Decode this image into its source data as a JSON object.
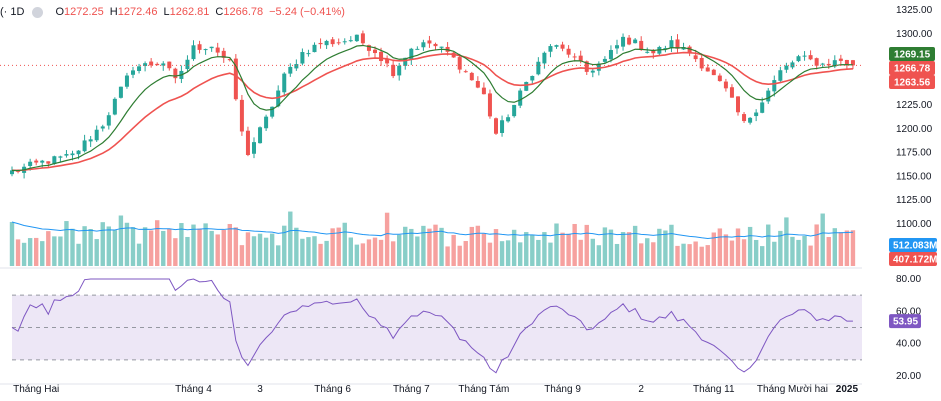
{
  "header": {
    "symbol": "(· 1D",
    "open_key": "O",
    "open": "1272.25",
    "high_key": "H",
    "high": "1272.46",
    "low_key": "L",
    "low": "1262.81",
    "close_key": "C",
    "close": "1266.78",
    "change": "−5.24 (−0.41%)"
  },
  "colors": {
    "up": "#26a69a",
    "down": "#ef5350",
    "ma_fast": "#2e7d32",
    "ma_slow": "#ef5350",
    "volume_ma": "#2196f3",
    "rsi": "#7e57c2",
    "rsi_band": "#ede7f6"
  },
  "price_axis": {
    "ticks": [
      "1325.00",
      "1300.00",
      "1275.00",
      "1250.00",
      "1225.00",
      "1200.00",
      "1175.00",
      "1150.00",
      "1125.00",
      "1100.00"
    ],
    "ylim": [
      1100,
      1325
    ],
    "tags": [
      {
        "label": "1269.15",
        "value": 1269.15,
        "color": "#2e7d32"
      },
      {
        "label": "1266.78",
        "value": 1266.78,
        "color": "#ef5350"
      },
      {
        "label": "1263.56",
        "value": 1263.56,
        "color": "#ef5350"
      }
    ]
  },
  "volume": {
    "tags": [
      {
        "label": "512.083M",
        "color": "#2196f3"
      },
      {
        "label": "407.172M",
        "color": "#ef5350"
      }
    ]
  },
  "rsi": {
    "ticks": [
      "80.00",
      "60.00",
      "40.00",
      "20.00"
    ],
    "ylim": [
      20,
      80
    ],
    "upper": 70,
    "middle": 50,
    "lower": 30,
    "value_label": "53.95",
    "value": 53.95
  },
  "x_axis": {
    "labels": [
      "Tháng Hai",
      "Tháng 4",
      "3",
      "Tháng 6",
      "Tháng 7",
      "Tháng Tám",
      "Tháng 9",
      "2",
      "Tháng 11",
      "Tháng Mười hai",
      "2025"
    ],
    "label_bars": [
      4,
      30,
      41,
      53,
      66,
      78,
      91,
      104,
      116,
      129,
      138
    ]
  },
  "chart_data": {
    "type": "candlestick",
    "title": "",
    "n_bars": 140,
    "close_anchors": [
      [
        0,
        1155
      ],
      [
        5,
        1165
      ],
      [
        10,
        1172
      ],
      [
        15,
        1205
      ],
      [
        20,
        1265
      ],
      [
        25,
        1270
      ],
      [
        27,
        1250
      ],
      [
        30,
        1285
      ],
      [
        33,
        1288
      ],
      [
        36,
        1268
      ],
      [
        38,
        1195
      ],
      [
        39,
        1175
      ],
      [
        42,
        1210
      ],
      [
        45,
        1255
      ],
      [
        48,
        1280
      ],
      [
        51,
        1290
      ],
      [
        54,
        1292
      ],
      [
        57,
        1295
      ],
      [
        60,
        1282
      ],
      [
        63,
        1260
      ],
      [
        66,
        1285
      ],
      [
        69,
        1290
      ],
      [
        72,
        1280
      ],
      [
        75,
        1260
      ],
      [
        78,
        1235
      ],
      [
        80,
        1195
      ],
      [
        83,
        1225
      ],
      [
        86,
        1260
      ],
      [
        89,
        1288
      ],
      [
        92,
        1280
      ],
      [
        95,
        1260
      ],
      [
        98,
        1272
      ],
      [
        101,
        1295
      ],
      [
        103,
        1290
      ],
      [
        106,
        1280
      ],
      [
        109,
        1290
      ],
      [
        112,
        1280
      ],
      [
        115,
        1262
      ],
      [
        118,
        1240
      ],
      [
        121,
        1205
      ],
      [
        124,
        1230
      ],
      [
        127,
        1260
      ],
      [
        130,
        1275
      ],
      [
        134,
        1268
      ],
      [
        137,
        1272
      ],
      [
        139,
        1266.78
      ]
    ],
    "last_ohlc": {
      "open": 1272.25,
      "high": 1272.46,
      "low": 1262.81,
      "close": 1266.78
    },
    "ma_fast_last": 1269.15,
    "ma_slow_last": 1263.56,
    "rsi_last": 53.95
  }
}
